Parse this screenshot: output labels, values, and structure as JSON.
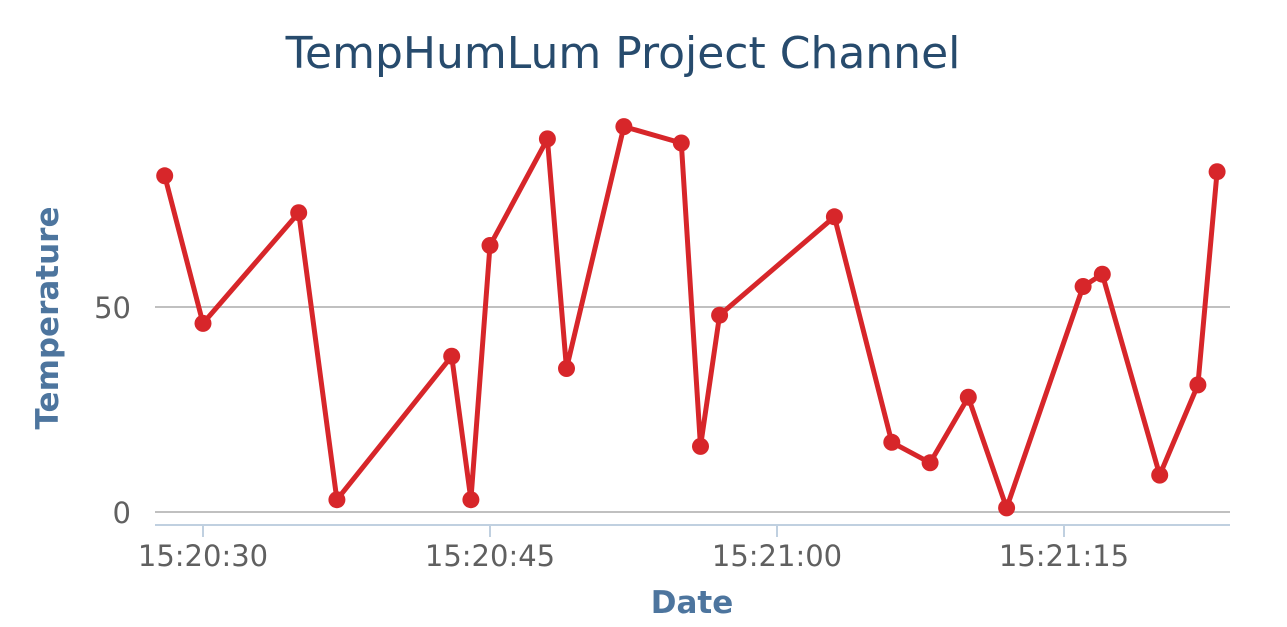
{
  "chart_data": {
    "type": "line",
    "title": "TempHumLum Project Channel",
    "xlabel": "Date",
    "ylabel": "Temperature",
    "x_tick_labels": [
      "15:20:30",
      "15:20:45",
      "15:21:00",
      "15:21:15"
    ],
    "y_tick_labels": [
      "0",
      "50"
    ],
    "ylim": [
      0,
      100
    ],
    "grid": true,
    "legend": "none",
    "colors": {
      "series": "#d7262a",
      "title": "#274b6d",
      "axis_title": "#4d759e",
      "grid": "#c0c0c0",
      "axis_line": "#c0d0e0",
      "tick_label": "#606060"
    },
    "series": [
      {
        "x": [
          "15:20:28",
          "15:20:30",
          "15:20:35",
          "15:20:37",
          "15:20:43",
          "15:20:44",
          "15:20:45",
          "15:20:48",
          "15:20:49",
          "15:20:52",
          "15:20:55",
          "15:20:56",
          "15:20:57",
          "15:21:03",
          "15:21:06",
          "15:21:08",
          "15:21:10",
          "15:21:12",
          "15:21:16",
          "15:21:17",
          "15:21:20",
          "15:21:22",
          "15:21:23"
        ],
        "values": [
          82,
          46,
          73,
          3,
          38,
          3,
          65,
          91,
          35,
          94,
          90,
          16,
          48,
          72,
          17,
          12,
          28,
          1,
          55,
          58,
          9,
          31,
          83
        ]
      }
    ]
  }
}
